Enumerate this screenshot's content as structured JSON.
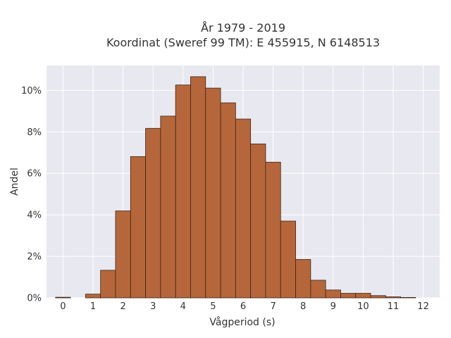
{
  "chart_data": {
    "type": "bar",
    "title": "År 1979 - 2019",
    "subtitle": "Koordinat (Sweref 99 TM): E 455915, N 6148513",
    "xlabel": "Vågperiod (s)",
    "ylabel": "Andel",
    "bin_width": 0.5,
    "x": [
      0,
      0.5,
      1,
      1.5,
      2,
      2.5,
      3,
      3.5,
      4,
      4.5,
      5,
      5.5,
      6,
      6.5,
      7,
      7.5,
      8,
      8.5,
      9,
      9.5,
      10,
      10.5,
      11,
      11.5,
      12
    ],
    "values": [
      0.0003,
      0,
      0.0018,
      0.0133,
      0.0419,
      0.0681,
      0.0817,
      0.0876,
      0.1026,
      0.1066,
      0.1011,
      0.094,
      0.0862,
      0.0742,
      0.0654,
      0.037,
      0.0185,
      0.0085,
      0.0038,
      0.0022,
      0.0022,
      0.0011,
      0.0005,
      0.0002,
      0
    ],
    "xlim": [
      -0.55,
      12.55
    ],
    "ylim": [
      0,
      0.112
    ],
    "xticks": [
      0,
      1,
      2,
      3,
      4,
      5,
      6,
      7,
      8,
      9,
      10,
      11,
      12
    ],
    "xtick_labels": [
      "0",
      "1",
      "2",
      "3",
      "4",
      "5",
      "6",
      "7",
      "8",
      "9",
      "10",
      "11",
      "12"
    ],
    "yticks": [
      0,
      0.02,
      0.04,
      0.06,
      0.08,
      0.1
    ],
    "ytick_labels": [
      "0%",
      "2%",
      "4%",
      "6%",
      "8%",
      "10%"
    ],
    "grid": true,
    "colors": {
      "bar": "#b5673b",
      "bar_edge": "#3d2416",
      "plot_bg": "#e8e8f0",
      "grid": "#ffffff"
    }
  }
}
